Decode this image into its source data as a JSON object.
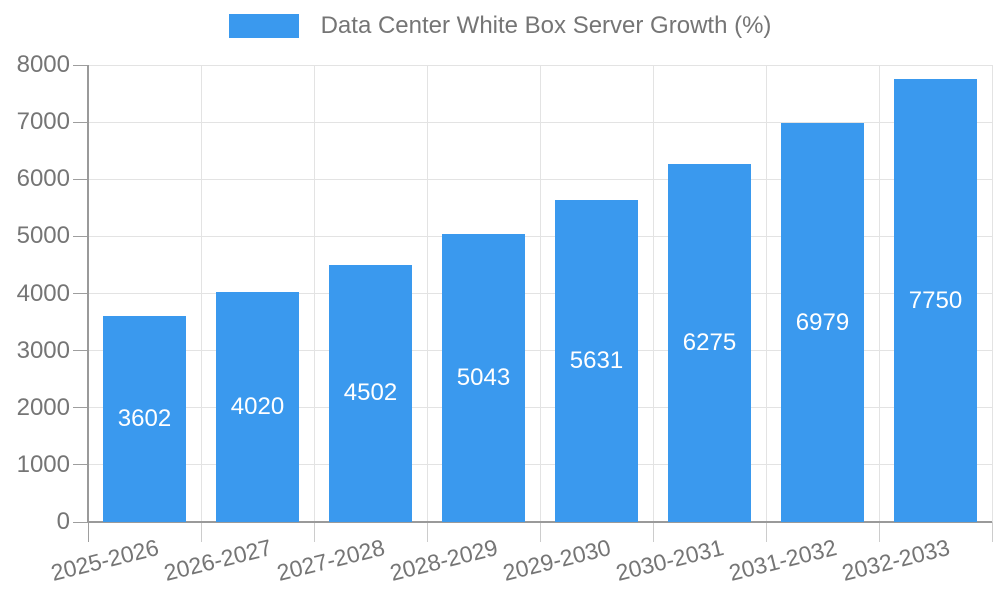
{
  "chart_data": {
    "type": "bar",
    "title": "Data Center White Box Server Growth (%)",
    "legend_position": "top",
    "legend_entries": [
      "Data Center White Box Server Growth (%)"
    ],
    "categories": [
      "2025-2026",
      "2026-2027",
      "2027-2028",
      "2028-2029",
      "2029-2030",
      "2030-2031",
      "2031-2032",
      "2032-2033"
    ],
    "series": [
      {
        "name": "Data Center White Box Server Growth (%)",
        "values": [
          3602,
          4020,
          4502,
          5043,
          5631,
          6275,
          6979,
          7750
        ]
      }
    ],
    "value_labels": [
      "3602",
      "4020",
      "4502",
      "5043",
      "5631",
      "6275",
      "6979",
      "7750"
    ],
    "xlabel": "",
    "ylabel": "",
    "ylim": [
      0,
      8000
    ],
    "ytick_step": 1000,
    "yticks": [
      0,
      1000,
      2000,
      3000,
      4000,
      5000,
      6000,
      7000,
      8000
    ],
    "grid": true,
    "colors": {
      "bar": "#3A99EE",
      "value_label": "#FFFFFF",
      "axis_text": "#757575",
      "gridline": "#E3E3E3",
      "axis_line": "#9A9A9A",
      "tick": "#9E9E9E",
      "background": "#FFFFFF"
    }
  }
}
